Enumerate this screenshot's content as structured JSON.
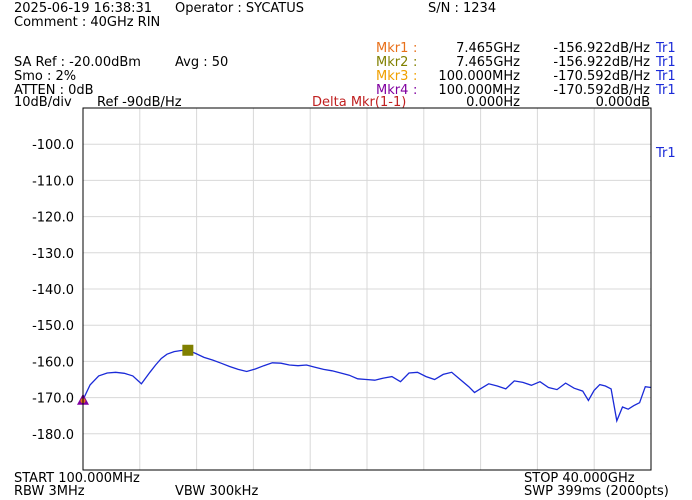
{
  "header": {
    "datetime": "2025-06-19 16:38:31",
    "operator": "Operator : SYCATUS",
    "serial": "S/N : 1234",
    "comment": "Comment : 40GHz RIN",
    "sa_ref": "SA Ref : -20.00dBm",
    "avg": "Avg : 50",
    "smo": "Smo : 2%",
    "atten": "ATTEN : 0dB",
    "scale": "10dB/div",
    "ref": "Ref -90dB/Hz"
  },
  "markers": [
    {
      "label": "Mkr1",
      "sep": ":",
      "freq": "7.465GHz",
      "value": "-156.922dB/Hz",
      "trace": "Tr1",
      "color": "#e8701a"
    },
    {
      "label": "Mkr2",
      "sep": ":",
      "freq": "7.465GHz",
      "value": "-156.922dB/Hz",
      "trace": "Tr1",
      "color": "#808000"
    },
    {
      "label": "Mkr3",
      "sep": ":",
      "freq": "100.000MHz",
      "value": "-170.592dB/Hz",
      "trace": "Tr1",
      "color": "#f0a000"
    },
    {
      "label": "Mkr4",
      "sep": ":",
      "freq": "100.000MHz",
      "value": "-170.592dB/Hz",
      "trace": "Tr1",
      "color": "#8000a0"
    }
  ],
  "delta": {
    "label": "Delta Mkr(1-1)",
    "freq": "0.000Hz",
    "value": "0.000dB"
  },
  "trace_label": "Tr1",
  "footer": {
    "start": "START 100.000MHz",
    "stop": "STOP 40.000GHz",
    "rbw": "RBW 3MHz",
    "vbw": "VBW 300kHz",
    "swp": "SWP 399ms (2000pts)"
  },
  "chart_data": {
    "type": "line",
    "title": "",
    "xlabel": "",
    "ylabel": "",
    "x_unit": "GHz",
    "xlim": [
      0.1,
      40.0
    ],
    "ylim": [
      -190,
      -90
    ],
    "grid": true,
    "trace_color": "#1a2ad8",
    "yticks": [
      -100,
      -110,
      -120,
      -130,
      -140,
      -150,
      -160,
      -170,
      -180
    ],
    "ytick_labels": [
      "-100.0",
      "-110.0",
      "-120.0",
      "-130.0",
      "-140.0",
      "-150.0",
      "-160.0",
      "-170.0",
      "-180.0"
    ],
    "series": [
      {
        "x": [
          0.1,
          0.6,
          1.2,
          1.8,
          2.4,
          3.0,
          3.6,
          4.2,
          4.8,
          5.2,
          5.6,
          6.0,
          6.5,
          7.0,
          7.465,
          8.0,
          8.6,
          9.2,
          9.8,
          10.4,
          11.0,
          11.6,
          12.2,
          12.8,
          13.4,
          14.0,
          14.6,
          15.2,
          15.8,
          16.4,
          17.0,
          17.6,
          18.2,
          18.8,
          19.4,
          20.0,
          20.6,
          21.2,
          21.8,
          22.4,
          23.0,
          23.6,
          24.2,
          24.8,
          25.4,
          26.0,
          26.6,
          27.2,
          27.6,
          28.0,
          28.6,
          29.2,
          29.8,
          30.4,
          31.0,
          31.6,
          32.2,
          32.8,
          33.4,
          34.0,
          34.6,
          35.2,
          35.6,
          36.0,
          36.4,
          36.8,
          37.2,
          37.6,
          38.0,
          38.4,
          38.8,
          39.2,
          39.6,
          40.0
        ],
        "y": [
          -170.6,
          -166.5,
          -164.0,
          -163.2,
          -163.0,
          -163.3,
          -164.0,
          -166.2,
          -163.0,
          -161.0,
          -159.2,
          -158.0,
          -157.3,
          -157.0,
          -156.9,
          -157.8,
          -158.9,
          -159.6,
          -160.5,
          -161.4,
          -162.2,
          -162.8,
          -162.1,
          -161.2,
          -160.4,
          -160.5,
          -161.0,
          -161.2,
          -161.0,
          -161.6,
          -162.2,
          -162.6,
          -163.2,
          -163.8,
          -164.8,
          -165.0,
          -165.2,
          -164.6,
          -164.2,
          -165.6,
          -163.2,
          -163.0,
          -164.2,
          -165.0,
          -163.6,
          -163.0,
          -165.0,
          -167.0,
          -168.6,
          -167.6,
          -166.2,
          -166.8,
          -167.6,
          -165.4,
          -165.8,
          -166.6,
          -165.6,
          -167.2,
          -167.8,
          -166.0,
          -167.4,
          -168.2,
          -170.8,
          -168.0,
          -166.4,
          -166.8,
          -167.6,
          -176.4,
          -172.6,
          -173.2,
          -172.2,
          -171.4,
          -167.0,
          -167.2
        ]
      }
    ],
    "markers": [
      {
        "name": "Mkr1",
        "x": 7.465,
        "y": -156.922,
        "shape": "square",
        "color": "#808000"
      },
      {
        "name": "Mkr3",
        "x": 0.1,
        "y": -170.592,
        "shape": "triangle",
        "color": "#8000a0"
      }
    ]
  }
}
